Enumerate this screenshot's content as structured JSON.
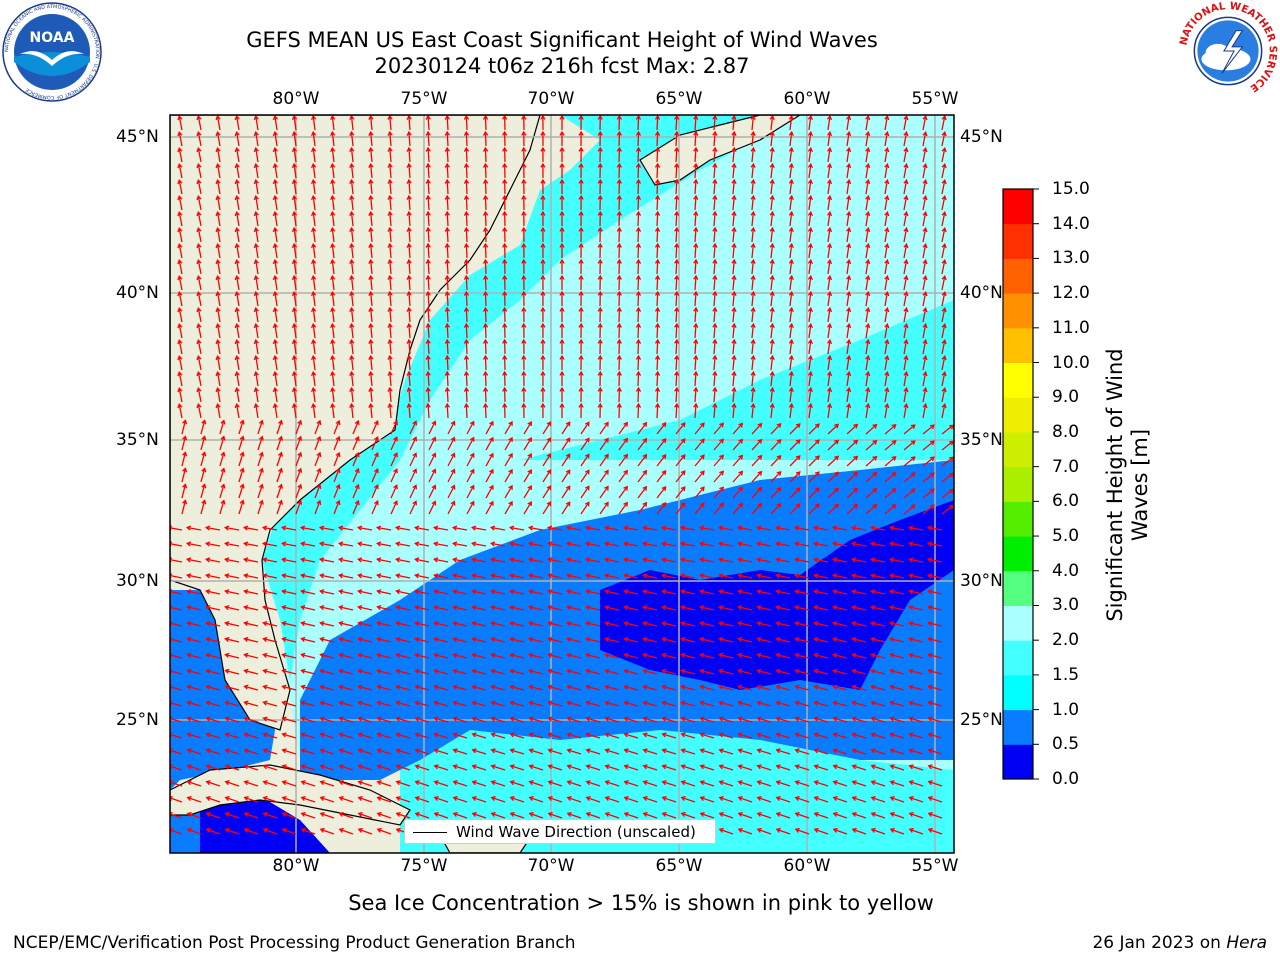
{
  "header": {
    "title_line1": "GEFS MEAN US East Coast Significant Height of Wind Waves",
    "title_line2": "20230124 t06z 216h fcst   Max: 2.87"
  },
  "logos": {
    "left": "noaa-logo",
    "left_text": "NOAA",
    "left_ring_text": "NATIONAL OCEANIC AND ATMOSPHERIC ADMINISTRATION · U.S. DEPARTMENT OF COMMERCE",
    "right": "nws-logo",
    "right_ring_text": "NATIONAL WEATHER SERVICE"
  },
  "map": {
    "lon_ticks": [
      "80°W",
      "75°W",
      "70°W",
      "65°W",
      "60°W",
      "55°W"
    ],
    "lat_ticks": [
      "45°N",
      "40°N",
      "35°N",
      "30°N",
      "25°N"
    ],
    "legend_label": "Wind Wave Direction (unscaled)",
    "colors": {
      "land": "#eeeedc",
      "coast": "#000000",
      "grid": "#b0b0b0",
      "arrows": "#ff0000"
    }
  },
  "colorbar": {
    "label": "Significant Height of Wind Waves [m]",
    "ticks": [
      "0.0",
      "0.5",
      "1.0",
      "1.5",
      "2.0",
      "3.0",
      "4.0",
      "5.0",
      "6.0",
      "7.0",
      "8.0",
      "9.0",
      "10.0",
      "11.0",
      "12.0",
      "13.0",
      "14.0",
      "15.0"
    ],
    "colors": [
      "#0000f5",
      "#0a7cff",
      "#00ffff",
      "#44ffff",
      "#aaffff",
      "#55ff80",
      "#00ee00",
      "#55ee00",
      "#aaee00",
      "#ccee00",
      "#eeee00",
      "#ffff00",
      "#ffc000",
      "#ff9000",
      "#ff6000",
      "#ff3000",
      "#ff0000"
    ]
  },
  "footnote": "Sea Ice Concentration > 15% is shown in pink to yellow",
  "footer": {
    "left": "NCEP/EMC/Verification Post Processing Product Generation Branch",
    "right_date": "26 Jan 2023 on ",
    "right_host": "Hera"
  }
}
